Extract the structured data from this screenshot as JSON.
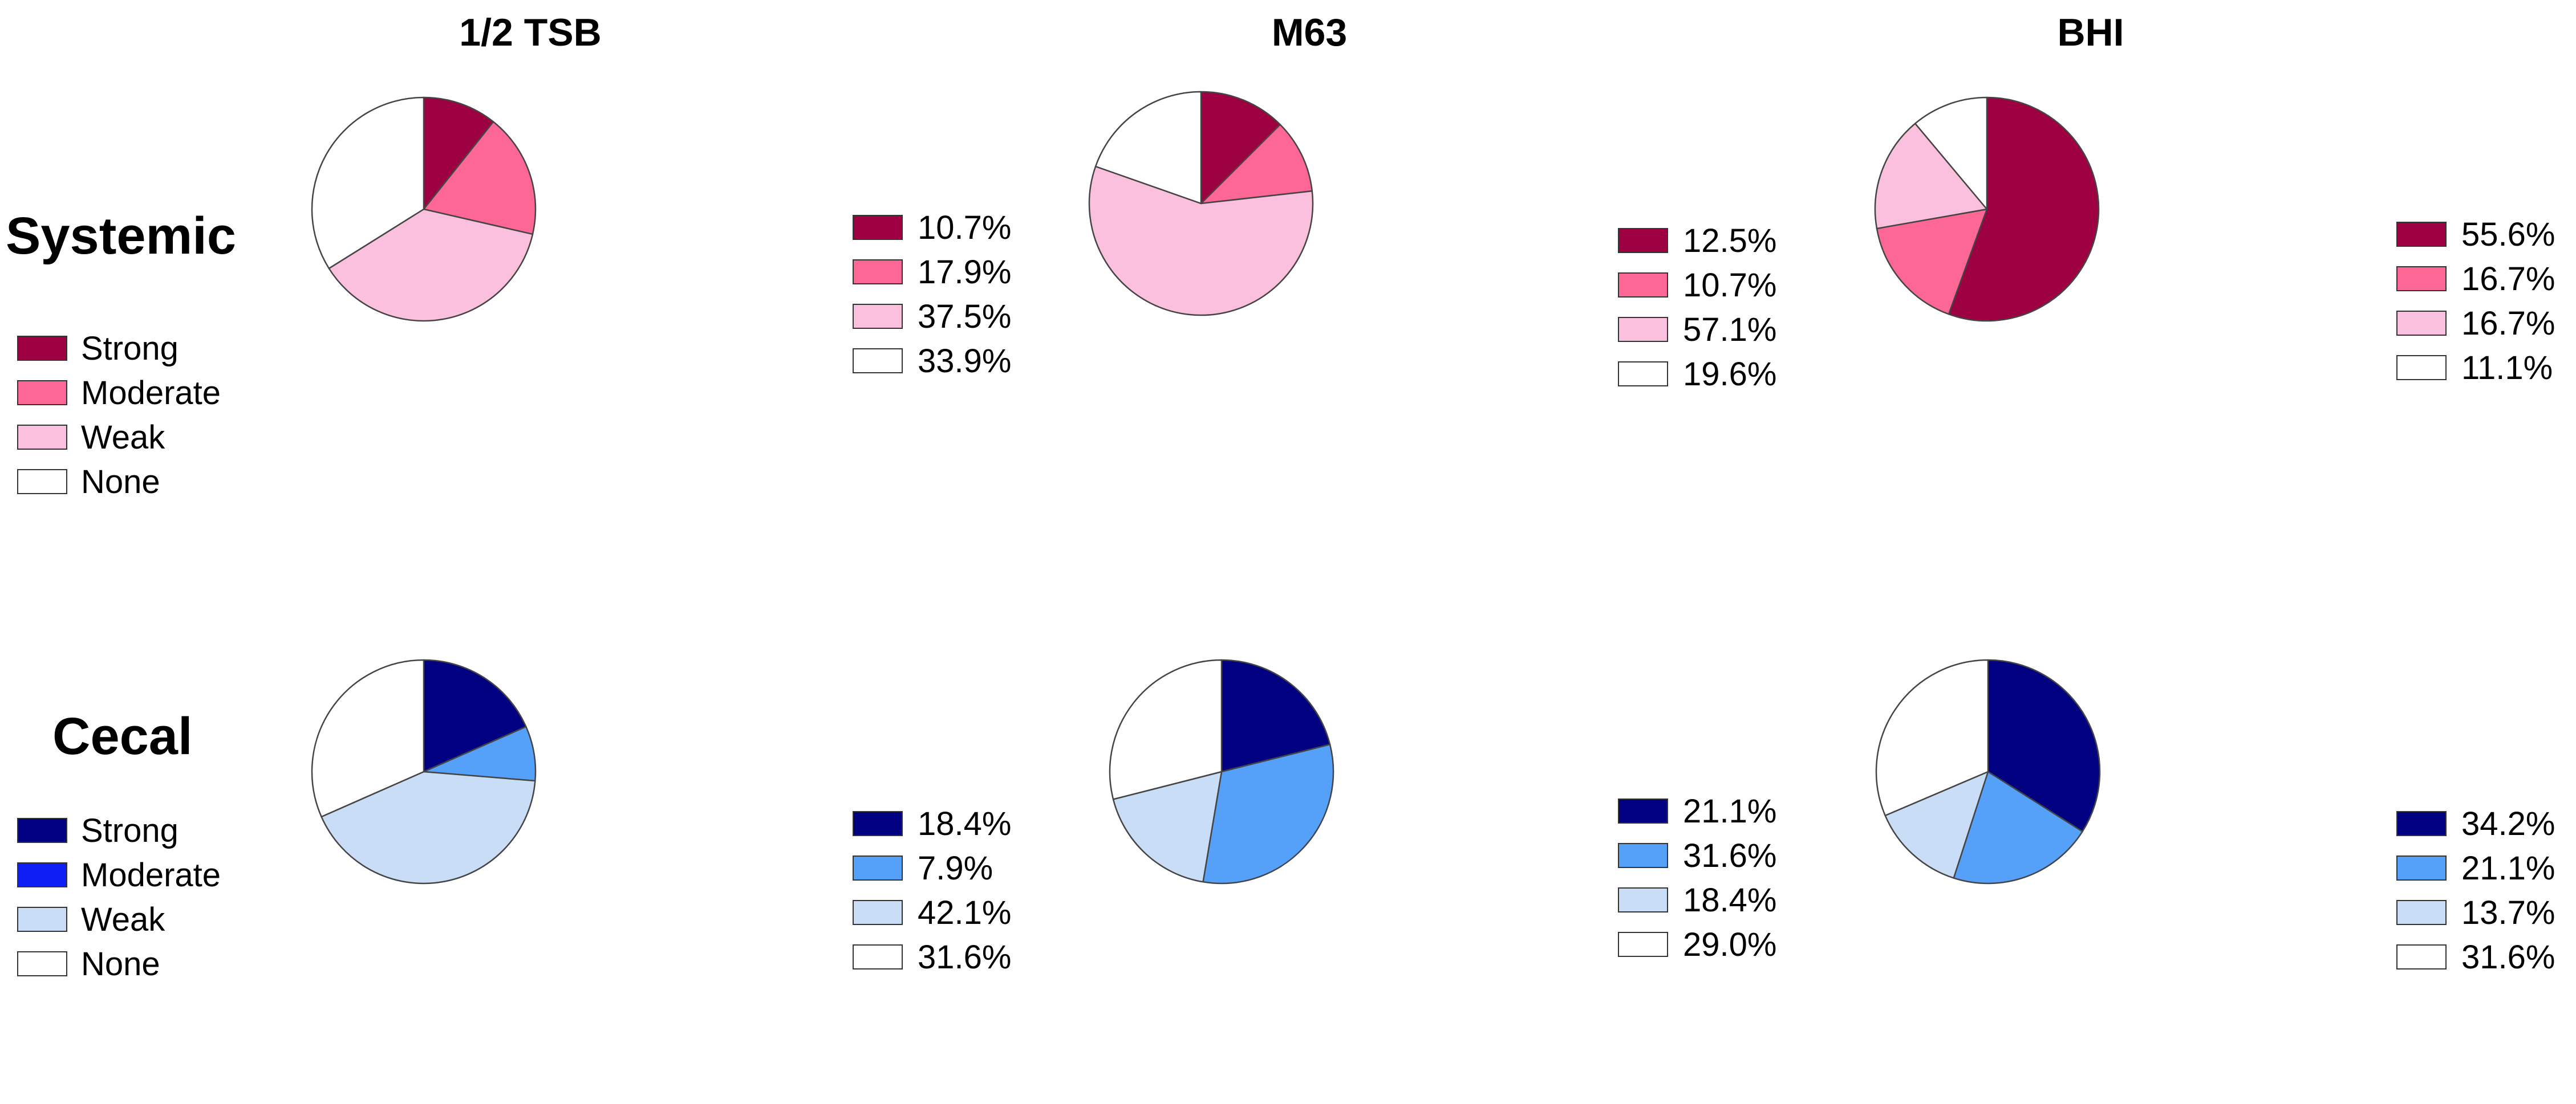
{
  "columns": [
    "1/2 TSB",
    "M63",
    "BHI"
  ],
  "rows": [
    "Systemic",
    "Cecal"
  ],
  "colors": {
    "systemic": [
      "#9e0142",
      "#fc6795",
      "#fbc0dd",
      "#ffffff"
    ],
    "cecal": [
      "#000080",
      "#55a1fa",
      "#c9ddf7",
      "#ffffff"
    ],
    "cecal_key_moderate": "#0d1ff5",
    "stroke": "#444444"
  },
  "key_labels": [
    "Strong",
    "Moderate",
    "Weak",
    "None"
  ],
  "chart_data": [
    {
      "type": "pie",
      "row": "Systemic",
      "column": "1/2 TSB",
      "categories": [
        "Strong",
        "Moderate",
        "Weak",
        "None"
      ],
      "values": [
        10.7,
        17.9,
        37.5,
        33.9
      ],
      "labels": [
        "10.7%",
        "17.9%",
        "37.5%",
        "33.9%"
      ]
    },
    {
      "type": "pie",
      "row": "Systemic",
      "column": "M63",
      "categories": [
        "Strong",
        "Moderate",
        "Weak",
        "None"
      ],
      "values": [
        12.5,
        10.7,
        57.1,
        19.6
      ],
      "labels": [
        "12.5%",
        "10.7%",
        "57.1%",
        "19.6%"
      ]
    },
    {
      "type": "pie",
      "row": "Systemic",
      "column": "BHI",
      "categories": [
        "Strong",
        "Moderate",
        "Weak",
        "None"
      ],
      "values": [
        55.6,
        16.7,
        16.7,
        11.1
      ],
      "labels": [
        "55.6%",
        "16.7%",
        "16.7%",
        "11.1%"
      ]
    },
    {
      "type": "pie",
      "row": "Cecal",
      "column": "1/2 TSB",
      "categories": [
        "Strong",
        "Moderate",
        "Weak",
        "None"
      ],
      "values": [
        18.4,
        7.9,
        42.1,
        31.6
      ],
      "labels": [
        "18.4%",
        "7.9%",
        "42.1%",
        "31.6%"
      ]
    },
    {
      "type": "pie",
      "row": "Cecal",
      "column": "M63",
      "categories": [
        "Strong",
        "Moderate",
        "Weak",
        "None"
      ],
      "values": [
        21.1,
        31.6,
        18.4,
        29.0
      ],
      "labels": [
        "21.1%",
        "31.6%",
        "18.4%",
        "29.0%"
      ]
    },
    {
      "type": "pie",
      "row": "Cecal",
      "column": "BHI",
      "categories": [
        "Strong",
        "Moderate",
        "Weak",
        "None"
      ],
      "values": [
        34.2,
        21.1,
        13.7,
        31.6
      ],
      "labels": [
        "34.2%",
        "21.1%",
        "13.7%",
        "31.6%"
      ]
    }
  ]
}
